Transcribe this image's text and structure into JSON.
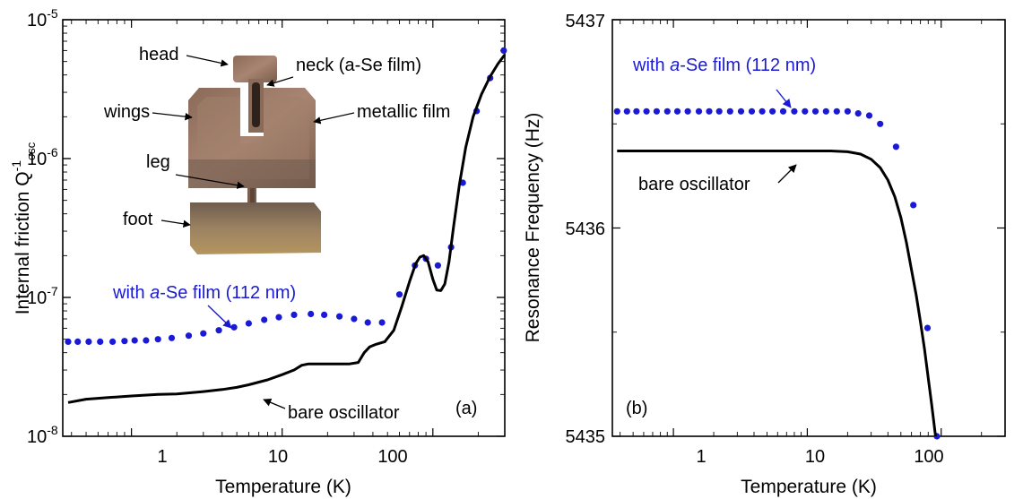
{
  "chart_data": [
    {
      "type": "scatter",
      "panel_label": "(a)",
      "xlabel": "Temperature (K)",
      "ylabel": {
        "main": "Internal friction Q",
        "sup": "-1",
        "sub": "osc"
      },
      "x_scale": "log",
      "y_scale": "log",
      "xlim": [
        0.35,
        300
      ],
      "ylim": [
        1e-08,
        1e-05
      ],
      "x_ticks": [
        {
          "value": 1,
          "label": "1"
        },
        {
          "value": 10,
          "label": "10"
        },
        {
          "value": 100,
          "label": "100"
        }
      ],
      "y_ticks": [
        {
          "value": 1e-08,
          "base": "10",
          "exp": "-8"
        },
        {
          "value": 1e-07,
          "base": "10",
          "exp": "-7"
        },
        {
          "value": 1e-06,
          "base": "10",
          "exp": "-6"
        },
        {
          "value": 1e-05,
          "base": "10",
          "exp": "-5"
        }
      ],
      "series": [
        {
          "style": "dots",
          "color": "#1a1ad6",
          "points": [
            [
              0.38,
              4.8e-08
            ],
            [
              0.44,
              4.8e-08
            ],
            [
              0.52,
              4.8e-08
            ],
            [
              0.62,
              4.8e-08
            ],
            [
              0.75,
              4.8e-08
            ],
            [
              0.9,
              4.85e-08
            ],
            [
              1.05,
              4.9e-08
            ],
            [
              1.25,
              4.9e-08
            ],
            [
              1.5,
              5e-08
            ],
            [
              1.85,
              5.1e-08
            ],
            [
              2.4,
              5.3e-08
            ],
            [
              3.0,
              5.5e-08
            ],
            [
              3.8,
              5.8e-08
            ],
            [
              4.8,
              6.1e-08
            ],
            [
              6.0,
              6.5e-08
            ],
            [
              7.6,
              6.9e-08
            ],
            [
              9.5,
              7.2e-08
            ],
            [
              12.0,
              7.5e-08
            ],
            [
              15.5,
              7.6e-08
            ],
            [
              19.0,
              7.5e-08
            ],
            [
              24.0,
              7.3e-08
            ],
            [
              30.0,
              7e-08
            ],
            [
              37.0,
              6.6e-08
            ],
            [
              46.0,
              6.6e-08
            ],
            [
              60.0,
              1.05e-07
            ],
            [
              76.0,
              1.7e-07
            ],
            [
              90.0,
              1.9e-07
            ],
            [
              108.0,
              1.7e-07
            ],
            [
              132.0,
              2.3e-07
            ],
            [
              158.0,
              6.7e-07
            ],
            [
              195.0,
              2.2e-06
            ],
            [
              240.0,
              3.8e-06
            ],
            [
              295.0,
              6e-06
            ]
          ]
        },
        {
          "style": "line",
          "color": "#000000",
          "points": [
            [
              0.38,
              1.75e-08
            ],
            [
              0.5,
              1.85e-08
            ],
            [
              0.7,
              1.9e-08
            ],
            [
              1.0,
              1.95e-08
            ],
            [
              1.5,
              2e-08
            ],
            [
              2.0,
              2.02e-08
            ],
            [
              3.0,
              2.1e-08
            ],
            [
              4.0,
              2.17e-08
            ],
            [
              5.0,
              2.25e-08
            ],
            [
              6.0,
              2.35e-08
            ],
            [
              8.0,
              2.55e-08
            ],
            [
              10.0,
              2.78e-08
            ],
            [
              12.0,
              3e-08
            ],
            [
              13.5,
              3.25e-08
            ],
            [
              15.0,
              3.32e-08
            ],
            [
              20.0,
              3.32e-08
            ],
            [
              28.0,
              3.32e-08
            ],
            [
              32.0,
              3.4e-08
            ],
            [
              35.0,
              4e-08
            ],
            [
              38.0,
              4.4e-08
            ],
            [
              42.0,
              4.6e-08
            ],
            [
              48.0,
              4.8e-08
            ],
            [
              55.0,
              5.8e-08
            ],
            [
              62.0,
              8.5e-08
            ],
            [
              70.0,
              1.3e-07
            ],
            [
              77.0,
              1.75e-07
            ],
            [
              82.0,
              1.95e-07
            ],
            [
              87.0,
              2e-07
            ],
            [
              93.0,
              1.8e-07
            ],
            [
              100.0,
              1.35e-07
            ],
            [
              106.0,
              1.13e-07
            ],
            [
              113.0,
              1.12e-07
            ],
            [
              120.0,
              1.25e-07
            ],
            [
              128.0,
              1.8e-07
            ],
            [
              137.0,
              3.2e-07
            ],
            [
              150.0,
              6.5e-07
            ],
            [
              165.0,
              1.2e-06
            ],
            [
              185.0,
              2e-06
            ],
            [
              210.0,
              2.9e-06
            ],
            [
              240.0,
              3.9e-06
            ],
            [
              270.0,
              4.8e-06
            ],
            [
              300.0,
              5.6e-06
            ]
          ]
        }
      ],
      "annotations": {
        "with_film_prefix": "with ",
        "with_film_italic": "a",
        "with_film_suffix": "-Se film (112 nm)",
        "bare": "bare oscillator"
      },
      "inset_labels": {
        "head": "head",
        "neck": "neck (a-Se film)",
        "wings": "wings",
        "metallic": "metallic film",
        "leg": "leg",
        "foot": "foot"
      }
    },
    {
      "type": "scatter",
      "panel_label": "(b)",
      "xlabel": "Temperature (K)",
      "ylabel": "Resonance Frequency (Hz)",
      "x_scale": "log",
      "y_scale": "linear",
      "xlim": [
        0.35,
        300
      ],
      "ylim": [
        5435,
        5437
      ],
      "x_ticks": [
        {
          "value": 1,
          "label": "1"
        },
        {
          "value": 10,
          "label": "10"
        },
        {
          "value": 100,
          "label": "100"
        }
      ],
      "y_ticks": [
        {
          "value": 5435,
          "label": "5435"
        },
        {
          "value": 5436,
          "label": "5436"
        },
        {
          "value": 5437,
          "label": "5437"
        }
      ],
      "series": [
        {
          "style": "dots",
          "color": "#1a1ad6",
          "points": [
            [
              0.38,
              5436.56
            ],
            [
              0.45,
              5436.56
            ],
            [
              0.53,
              5436.56
            ],
            [
              0.63,
              5436.56
            ],
            [
              0.75,
              5436.56
            ],
            [
              0.9,
              5436.56
            ],
            [
              1.07,
              5436.56
            ],
            [
              1.28,
              5436.56
            ],
            [
              1.55,
              5436.56
            ],
            [
              1.85,
              5436.56
            ],
            [
              2.2,
              5436.56
            ],
            [
              2.65,
              5436.56
            ],
            [
              3.2,
              5436.56
            ],
            [
              3.85,
              5436.56
            ],
            [
              4.6,
              5436.56
            ],
            [
              5.5,
              5436.56
            ],
            [
              6.6,
              5436.56
            ],
            [
              8.0,
              5436.56
            ],
            [
              9.6,
              5436.56
            ],
            [
              11.5,
              5436.56
            ],
            [
              13.8,
              5436.56
            ],
            [
              16.6,
              5436.56
            ],
            [
              20.0,
              5436.56
            ],
            [
              24.0,
              5436.55
            ],
            [
              29.0,
              5436.54
            ],
            [
              35.0,
              5436.5
            ],
            [
              46.0,
              5436.39
            ],
            [
              62.0,
              5436.11
            ],
            [
              79.0,
              5435.52
            ],
            [
              93.0,
              5435.0
            ]
          ]
        },
        {
          "style": "line",
          "color": "#000000",
          "points": [
            [
              0.38,
              5436.37
            ],
            [
              1.0,
              5436.37
            ],
            [
              5.0,
              5436.37
            ],
            [
              10.0,
              5436.37
            ],
            [
              15.0,
              5436.37
            ],
            [
              20.0,
              5436.366
            ],
            [
              25.0,
              5436.355
            ],
            [
              30.0,
              5436.33
            ],
            [
              35.0,
              5436.29
            ],
            [
              40.0,
              5436.23
            ],
            [
              45.0,
              5436.15
            ],
            [
              50.0,
              5436.05
            ],
            [
              55.0,
              5435.93
            ],
            [
              60.0,
              5435.8
            ],
            [
              65.0,
              5435.68
            ],
            [
              70.0,
              5435.55
            ],
            [
              75.0,
              5435.42
            ],
            [
              80.0,
              5435.28
            ],
            [
              85.0,
              5435.15
            ],
            [
              90.0,
              5435.02
            ],
            [
              91.0,
              5435.0
            ]
          ]
        }
      ],
      "annotations": {
        "with_film_prefix": "with ",
        "with_film_italic": "a",
        "with_film_suffix": "-Se film (112 nm)",
        "bare": "bare oscillator"
      }
    }
  ]
}
